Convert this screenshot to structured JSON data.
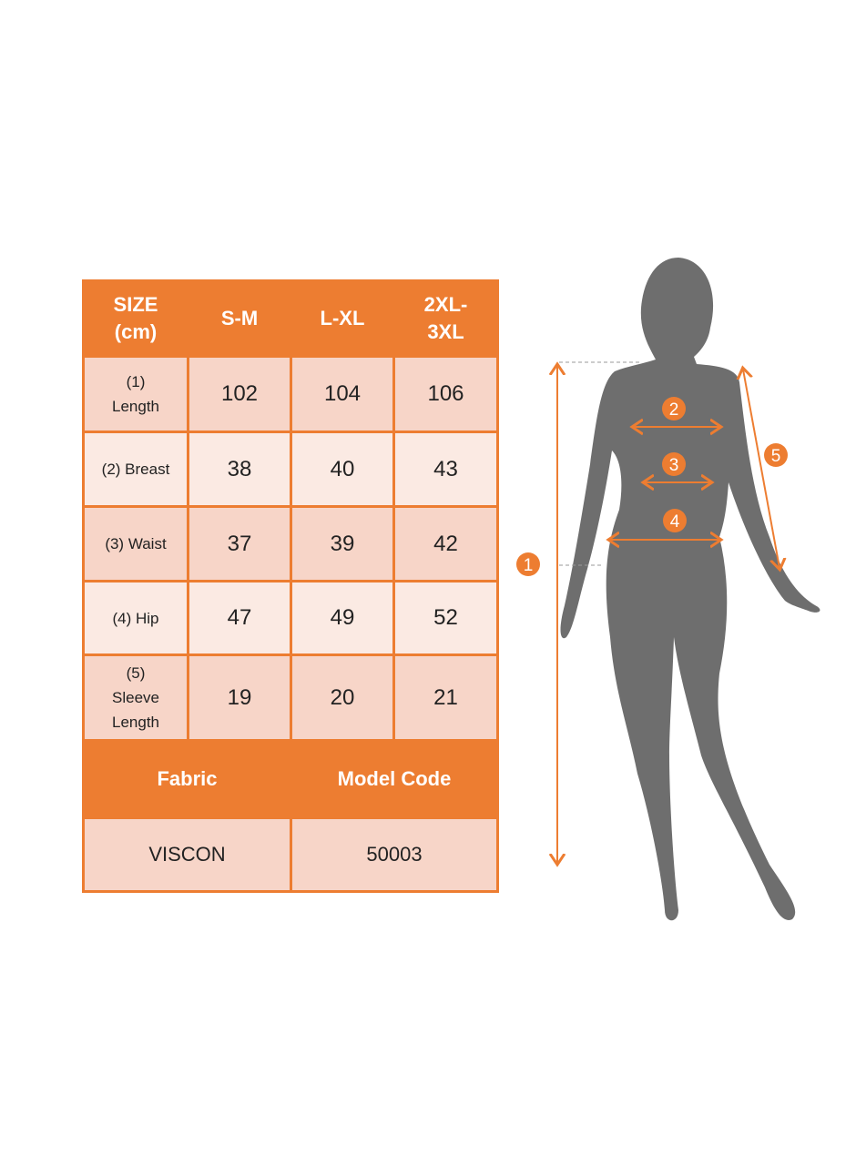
{
  "table": {
    "header": [
      "SIZE (cm)",
      "S-M",
      "L-XL",
      "2XL-3XL"
    ],
    "rows": [
      {
        "label": "(1) Length",
        "values": [
          "102",
          "104",
          "106"
        ]
      },
      {
        "label": "(2) Breast",
        "values": [
          "38",
          "40",
          "43"
        ]
      },
      {
        "label": "(3) Waist",
        "values": [
          "37",
          "39",
          "42"
        ]
      },
      {
        "label": "(4) Hip",
        "values": [
          "47",
          "49",
          "52"
        ]
      },
      {
        "label": "(5) Sleeve Length",
        "values": [
          "19",
          "20",
          "21"
        ]
      }
    ],
    "info_header": [
      "Fabric",
      "Model Code"
    ],
    "info_values": [
      "VISCON",
      "50003"
    ]
  },
  "figure": {
    "markers": [
      "1",
      "2",
      "3",
      "4",
      "5"
    ]
  },
  "colors": {
    "accent": "#ED7D31",
    "cell_dark": "#F7D5C8",
    "cell_light": "#FBEAE3",
    "silhouette": "#6E6E6E"
  }
}
